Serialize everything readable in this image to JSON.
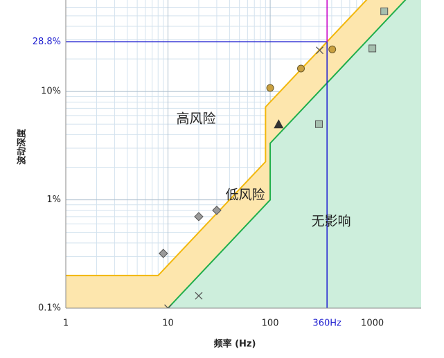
{
  "chart_data": {
    "type": "scatter",
    "x_label": "频率 (Hz)",
    "y_label": "波动深度",
    "log_x": true,
    "log_y": true,
    "grid": true,
    "minor_grid": true,
    "xlim": [
      1,
      3000
    ],
    "ylim": [
      0.1,
      70
    ],
    "xticks": [
      1,
      10,
      100,
      1000
    ],
    "yticks": [
      {
        "value": 0.1,
        "label": "0.1%"
      },
      {
        "value": 1,
        "label": "1%"
      },
      {
        "value": 10,
        "label": "10%"
      }
    ],
    "guide": {
      "x": {
        "value": 360,
        "label": "360Hz"
      },
      "y": {
        "value": 28.8,
        "label": "28.8%"
      },
      "color": "#1f1fd0",
      "upper_color": "#c800c8"
    },
    "annotations": [
      "高风险",
      "低风险",
      "无影响"
    ],
    "boundaries": [
      {
        "color": "#f2b70c",
        "fill": "#fde6ad",
        "x": [
          1,
          8,
          90,
          90,
          1250
        ],
        "values": [
          0.2,
          0.2,
          2.25,
          7.2,
          100
        ]
      },
      {
        "color": "#1fae4b",
        "fill": "#cdeedc",
        "x": [
          10,
          100,
          100,
          3000
        ],
        "values": [
          0.1,
          1,
          3.33,
          100
        ]
      }
    ],
    "series": [
      {
        "marker": "circle",
        "color": "#c9a040",
        "x": [
          100,
          200,
          405
        ],
        "values": [
          10.8,
          16.3,
          24.5
        ]
      },
      {
        "marker": "square",
        "color": "#a6bfae",
        "x": [
          300,
          1000,
          1306
        ],
        "values": [
          5,
          25,
          55
        ]
      },
      {
        "marker": "triangle",
        "color": "#333333",
        "x": [
          121
        ],
        "values": [
          5
        ]
      },
      {
        "marker": "diamond",
        "color": "#9a9a9a",
        "x": [
          9,
          20,
          30
        ],
        "values": [
          0.32,
          0.7,
          0.8
        ]
      },
      {
        "marker": "cross",
        "color": "#555555",
        "x": [
          10,
          20,
          305
        ],
        "values": [
          0.1,
          0.13,
          24
        ]
      }
    ]
  }
}
